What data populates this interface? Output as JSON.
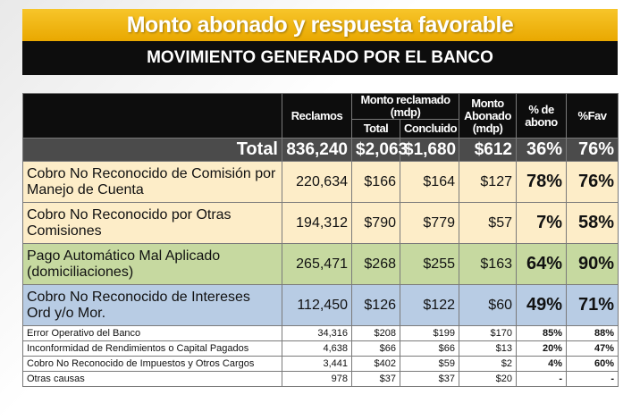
{
  "title": "Monto abonado y respuesta favorable",
  "subtitle": "MOVIMIENTO GENERADO POR EL BANCO",
  "headers": {
    "reclamos": "Reclamos",
    "monto_reclamado": "Monto reclamado (mdp)",
    "total": "Total",
    "concluido": "Concluido",
    "monto_abonado": "Monto Abonado (mdp)",
    "pct_abono": "% de abono",
    "pct_fav": "%Fav"
  },
  "total_row": {
    "label": "Total",
    "reclamos": "836,240",
    "total": "$2,063",
    "concluido": "$1,680",
    "abonado": "$612",
    "pct_abono": "36%",
    "pct_fav": "76%"
  },
  "rows": [
    {
      "label": "Cobro No Reconocido de Comisión por Manejo de Cuenta",
      "reclamos": "220,634",
      "total": "$166",
      "concluido": "$164",
      "abonado": "$127",
      "pct_abono": "78%",
      "pct_fav": "76%"
    },
    {
      "label": "Cobro No Reconocido por Otras Comisiones",
      "reclamos": "194,312",
      "total": "$790",
      "concluido": "$779",
      "abonado": "$57",
      "pct_abono": "7%",
      "pct_fav": "58%"
    },
    {
      "label": "Pago Automático Mal Aplicado (domiciliaciones)",
      "reclamos": "265,471",
      "total": "$268",
      "concluido": "$255",
      "abonado": "$163",
      "pct_abono": "64%",
      "pct_fav": "90%"
    },
    {
      "label": "Cobro No Reconocido de Intereses Ord y/o Mor.",
      "reclamos": "112,450",
      "total": "$126",
      "concluido": "$122",
      "abonado": "$60",
      "pct_abono": "49%",
      "pct_fav": "71%"
    },
    {
      "label": "Error Operativo del Banco",
      "reclamos": "34,316",
      "total": "$208",
      "concluido": "$199",
      "abonado": "$170",
      "pct_abono": "85%",
      "pct_fav": "88%"
    },
    {
      "label": "Inconformidad de Rendimientos o Capital Pagados",
      "reclamos": "4,638",
      "total": "$66",
      "concluido": "$66",
      "abonado": "$13",
      "pct_abono": "20%",
      "pct_fav": "47%"
    },
    {
      "label": "Cobro No Reconocido de Impuestos y Otros Cargos",
      "reclamos": "3,441",
      "total": "$402",
      "concluido": "$59",
      "abonado": "$2",
      "pct_abono": "4%",
      "pct_fav": "60%"
    },
    {
      "label": "Otras causas",
      "reclamos": "978",
      "total": "$37",
      "concluido": "$37",
      "abonado": "$20",
      "pct_abono": "-",
      "pct_fav": "-"
    }
  ]
}
